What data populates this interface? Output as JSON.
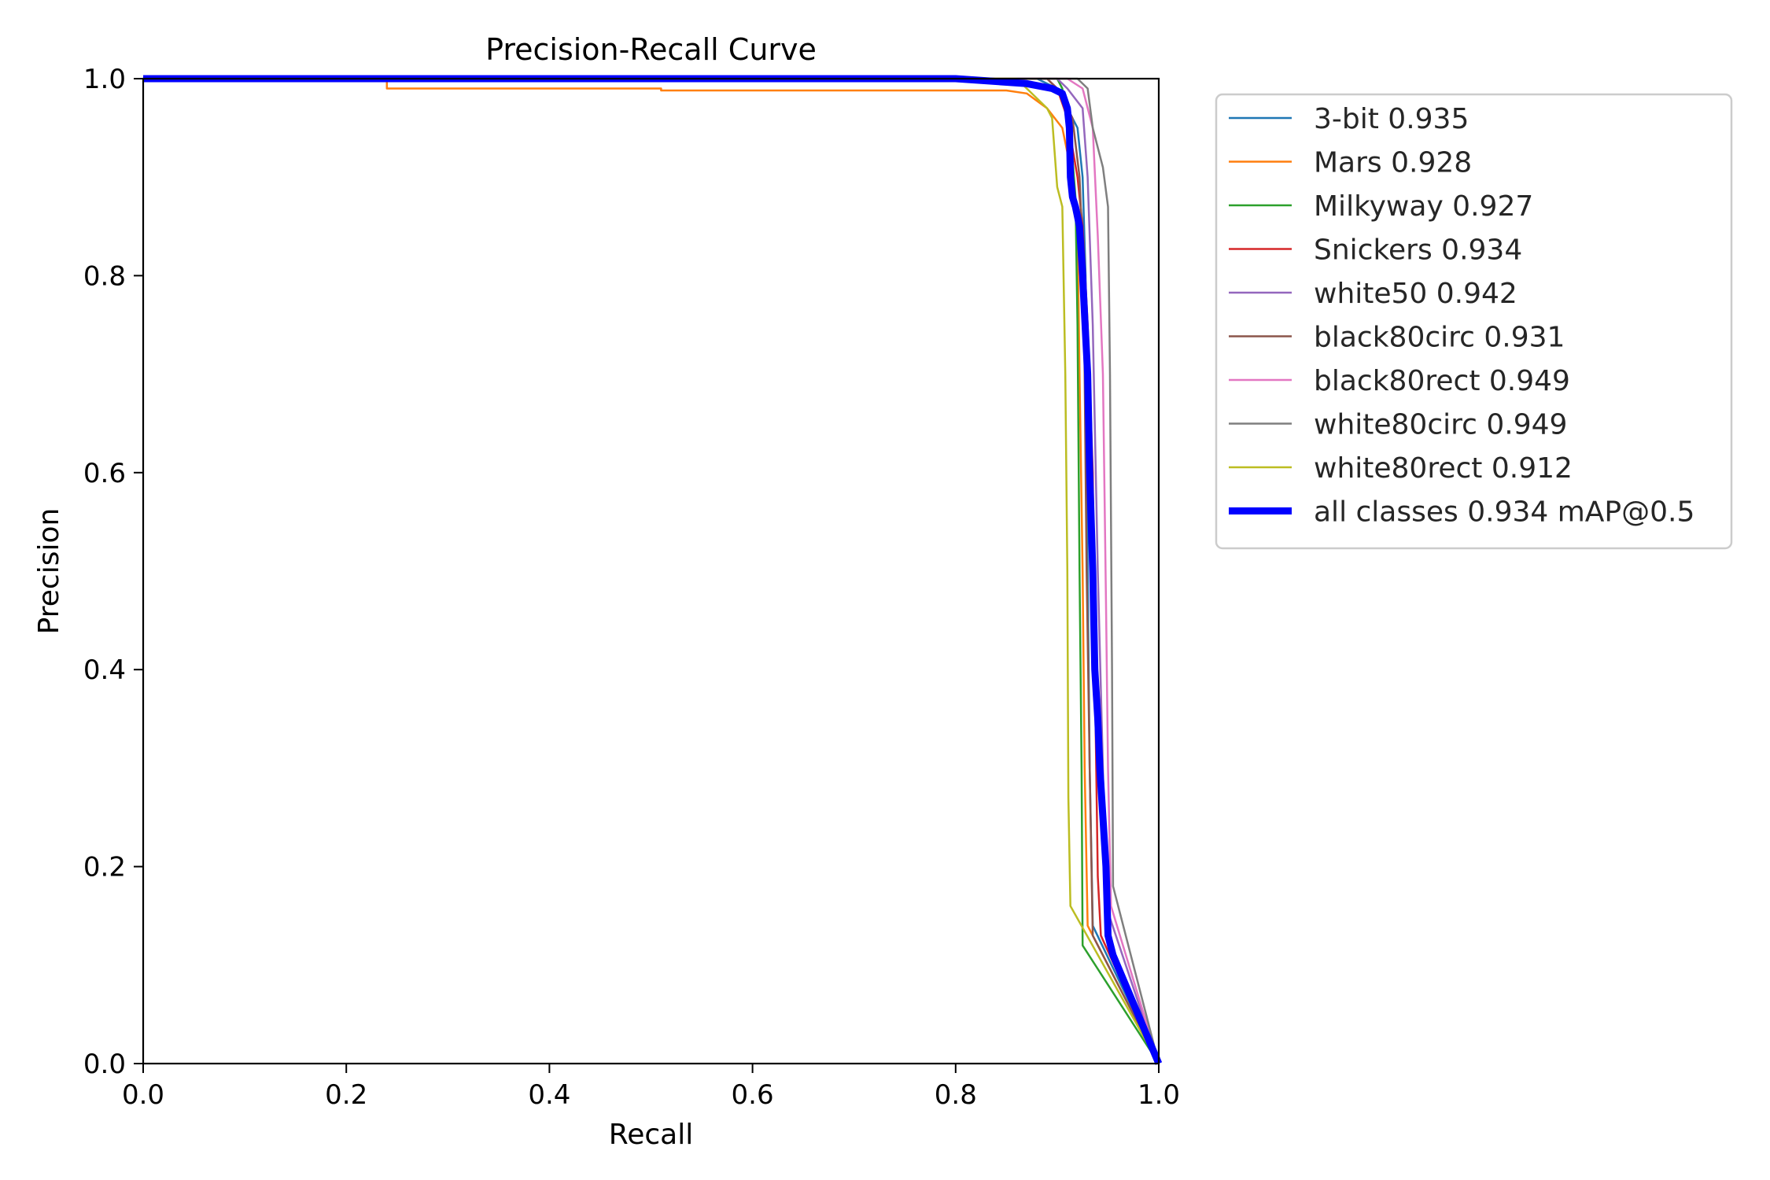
{
  "chart_data": {
    "type": "line",
    "title": "Precision-Recall Curve",
    "xlabel": "Recall",
    "ylabel": "Precision",
    "xlim": [
      0,
      1
    ],
    "ylim": [
      0,
      1
    ],
    "xticks": [
      "0.0",
      "0.2",
      "0.4",
      "0.6",
      "0.8",
      "1.0"
    ],
    "yticks": [
      "0.0",
      "0.2",
      "0.4",
      "0.6",
      "0.8",
      "1.0"
    ],
    "grid": false,
    "legend_placement": "outside top-right",
    "series": [
      {
        "name": "3-bit 0.935",
        "color": "#1f77b4",
        "width": "thin",
        "points": [
          [
            0,
            1.0
          ],
          [
            0.88,
            1.0
          ],
          [
            0.9,
            0.99
          ],
          [
            0.91,
            0.97
          ],
          [
            0.92,
            0.95
          ],
          [
            0.925,
            0.9
          ],
          [
            0.928,
            0.8
          ],
          [
            0.93,
            0.5
          ],
          [
            0.932,
            0.3
          ],
          [
            0.935,
            0.14
          ],
          [
            1.0,
            0.0
          ]
        ]
      },
      {
        "name": "Mars 0.928",
        "color": "#ff7f0e",
        "width": "thin",
        "points": [
          [
            0,
            1.0
          ],
          [
            0.24,
            1.0
          ],
          [
            0.24,
            0.99
          ],
          [
            0.51,
            0.99
          ],
          [
            0.51,
            0.988
          ],
          [
            0.85,
            0.988
          ],
          [
            0.87,
            0.985
          ],
          [
            0.89,
            0.97
          ],
          [
            0.905,
            0.95
          ],
          [
            0.915,
            0.9
          ],
          [
            0.92,
            0.85
          ],
          [
            0.922,
            0.7
          ],
          [
            0.925,
            0.5
          ],
          [
            0.927,
            0.3
          ],
          [
            0.93,
            0.14
          ],
          [
            1.0,
            0.0
          ]
        ]
      },
      {
        "name": "Milkyway 0.927",
        "color": "#2ca02c",
        "width": "thin",
        "points": [
          [
            0,
            1.0
          ],
          [
            0.9,
            1.0
          ],
          [
            0.905,
            0.99
          ],
          [
            0.91,
            0.95
          ],
          [
            0.915,
            0.92
          ],
          [
            0.918,
            0.88
          ],
          [
            0.92,
            0.75
          ],
          [
            0.922,
            0.5
          ],
          [
            0.924,
            0.3
          ],
          [
            0.925,
            0.12
          ],
          [
            1.0,
            0.0
          ]
        ]
      },
      {
        "name": "Snickers 0.934",
        "color": "#d62728",
        "width": "thin",
        "points": [
          [
            0,
            1.0
          ],
          [
            0.89,
            1.0
          ],
          [
            0.9,
            0.99
          ],
          [
            0.91,
            0.96
          ],
          [
            0.92,
            0.9
          ],
          [
            0.925,
            0.85
          ],
          [
            0.93,
            0.75
          ],
          [
            0.935,
            0.6
          ],
          [
            0.937,
            0.4
          ],
          [
            0.94,
            0.19
          ],
          [
            0.943,
            0.13
          ],
          [
            1.0,
            0.0
          ]
        ]
      },
      {
        "name": "white50 0.942",
        "color": "#9467bd",
        "width": "thin",
        "points": [
          [
            0,
            1.0
          ],
          [
            0.9,
            1.0
          ],
          [
            0.91,
            0.99
          ],
          [
            0.925,
            0.97
          ],
          [
            0.93,
            0.9
          ],
          [
            0.935,
            0.75
          ],
          [
            0.94,
            0.5
          ],
          [
            0.945,
            0.3
          ],
          [
            0.948,
            0.16
          ],
          [
            1.0,
            0.0
          ]
        ]
      },
      {
        "name": "black80circ 0.931",
        "color": "#8c564b",
        "width": "thin",
        "points": [
          [
            0,
            1.0
          ],
          [
            0.89,
            1.0
          ],
          [
            0.9,
            0.99
          ],
          [
            0.915,
            0.96
          ],
          [
            0.922,
            0.9
          ],
          [
            0.926,
            0.8
          ],
          [
            0.929,
            0.5
          ],
          [
            0.932,
            0.3
          ],
          [
            0.935,
            0.13
          ],
          [
            1.0,
            0.0
          ]
        ]
      },
      {
        "name": "black80rect 0.949",
        "color": "#e377c2",
        "width": "thin",
        "points": [
          [
            0,
            1.0
          ],
          [
            0.91,
            1.0
          ],
          [
            0.925,
            0.99
          ],
          [
            0.935,
            0.95
          ],
          [
            0.94,
            0.84
          ],
          [
            0.945,
            0.7
          ],
          [
            0.948,
            0.47
          ],
          [
            0.95,
            0.3
          ],
          [
            0.953,
            0.16
          ],
          [
            1.0,
            0.0
          ]
        ]
      },
      {
        "name": "white80circ 0.949",
        "color": "#7f7f7f",
        "width": "thin",
        "points": [
          [
            0,
            1.0
          ],
          [
            0.92,
            1.0
          ],
          [
            0.93,
            0.99
          ],
          [
            0.935,
            0.95
          ],
          [
            0.94,
            0.93
          ],
          [
            0.945,
            0.91
          ],
          [
            0.95,
            0.87
          ],
          [
            0.952,
            0.7
          ],
          [
            0.954,
            0.4
          ],
          [
            0.955,
            0.18
          ],
          [
            1.0,
            0.0
          ]
        ]
      },
      {
        "name": "white80rect 0.912",
        "color": "#bcbd22",
        "width": "thin",
        "points": [
          [
            0,
            1.0
          ],
          [
            0.86,
            1.0
          ],
          [
            0.87,
            0.99
          ],
          [
            0.88,
            0.98
          ],
          [
            0.89,
            0.97
          ],
          [
            0.895,
            0.96
          ],
          [
            0.9,
            0.89
          ],
          [
            0.905,
            0.87
          ],
          [
            0.908,
            0.7
          ],
          [
            0.91,
            0.5
          ],
          [
            0.911,
            0.27
          ],
          [
            0.913,
            0.16
          ],
          [
            1.0,
            0.0
          ]
        ]
      },
      {
        "name": "all classes 0.934 mAP@0.5",
        "color": "#0000ff",
        "width": "thick",
        "points": [
          [
            0,
            1.0
          ],
          [
            0.8,
            1.0
          ],
          [
            0.87,
            0.995
          ],
          [
            0.895,
            0.99
          ],
          [
            0.905,
            0.985
          ],
          [
            0.91,
            0.97
          ],
          [
            0.912,
            0.95
          ],
          [
            0.913,
            0.9
          ],
          [
            0.915,
            0.88
          ],
          [
            0.918,
            0.87
          ],
          [
            0.922,
            0.85
          ],
          [
            0.925,
            0.8
          ],
          [
            0.928,
            0.74
          ],
          [
            0.93,
            0.7
          ],
          [
            0.932,
            0.6
          ],
          [
            0.935,
            0.5
          ],
          [
            0.937,
            0.4
          ],
          [
            0.94,
            0.35
          ],
          [
            0.942,
            0.3
          ],
          [
            0.945,
            0.25
          ],
          [
            0.948,
            0.2
          ],
          [
            0.95,
            0.13
          ],
          [
            0.955,
            0.11
          ],
          [
            1.0,
            0.0
          ]
        ]
      }
    ]
  }
}
